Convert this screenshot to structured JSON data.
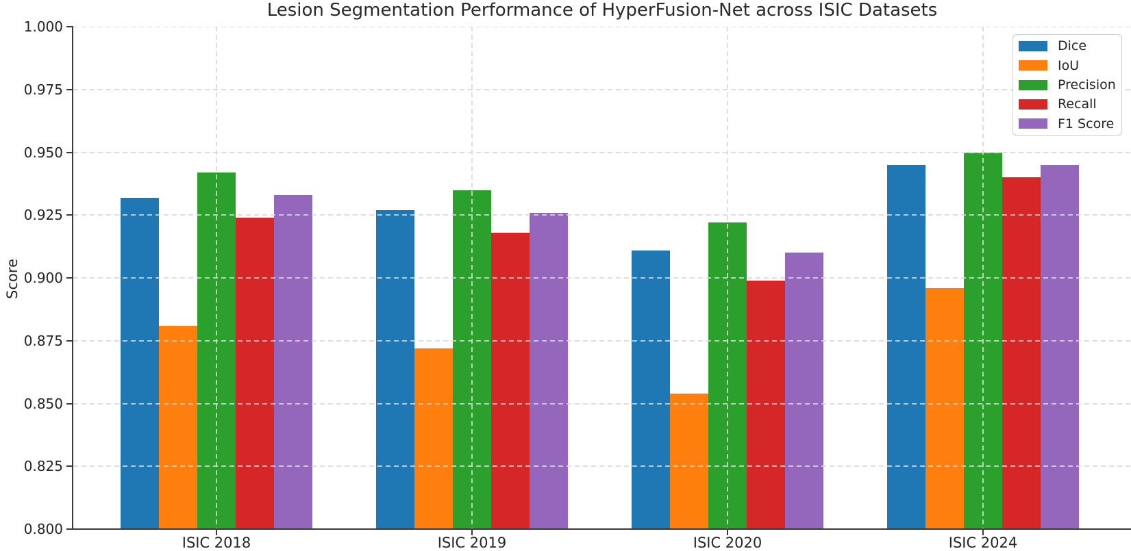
{
  "chart_data": {
    "type": "bar",
    "title": "Lesion Segmentation Performance of HyperFusion-Net across ISIC Datasets",
    "xlabel": "",
    "ylabel": "Score",
    "ylim": [
      0.8,
      1.0
    ],
    "ytick_step": 0.025,
    "y_tick_labels": [
      "0.800",
      "0.825",
      "0.850",
      "0.875",
      "0.900",
      "0.925",
      "0.950",
      "0.975",
      "1.000"
    ],
    "grid": "dashed",
    "legend_position": "upper right",
    "categories": [
      "ISIC 2018",
      "ISIC 2019",
      "ISIC 2020",
      "ISIC 2024"
    ],
    "series": [
      {
        "name": "Dice",
        "color": "#1f77b4",
        "values": [
          0.932,
          0.927,
          0.911,
          0.945
        ]
      },
      {
        "name": "IoU",
        "color": "#ff7f0e",
        "values": [
          0.881,
          0.872,
          0.854,
          0.896
        ]
      },
      {
        "name": "Precision",
        "color": "#2ca02c",
        "values": [
          0.942,
          0.935,
          0.922,
          0.95
        ]
      },
      {
        "name": "Recall",
        "color": "#d62728",
        "values": [
          0.924,
          0.918,
          0.899,
          0.94
        ]
      },
      {
        "name": "F1 Score",
        "color": "#9467bd",
        "values": [
          0.933,
          0.926,
          0.91,
          0.945
        ]
      }
    ]
  }
}
